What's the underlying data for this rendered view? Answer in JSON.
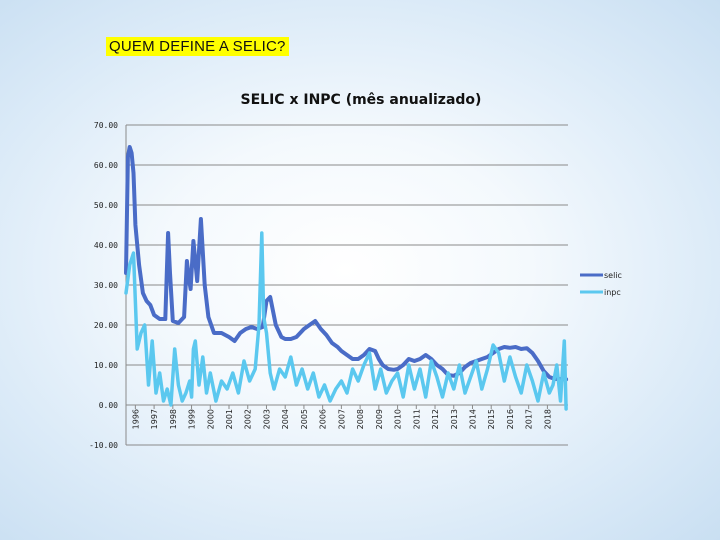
{
  "slide": {
    "title": "QUEM DEFINE A SELIC?"
  },
  "chart_data": {
    "type": "line",
    "title": "SELIC x INPC (mês anualizado)",
    "xlabel": "",
    "ylabel": "",
    "ylim": [
      -10,
      70
    ],
    "yticks": [
      -10,
      0,
      10,
      20,
      30,
      40,
      50,
      60,
      70
    ],
    "ytick_labels": [
      "-10.00",
      "0.00",
      "10.00",
      "20.00",
      "30.00",
      "40.00",
      "50.00",
      "60.00",
      "70.00"
    ],
    "xlim": [
      1995.5,
      2019.1
    ],
    "xticks": [
      1996,
      1997,
      1998,
      1999,
      2000,
      2001,
      2002,
      2003,
      2004,
      2005,
      2006,
      2007,
      2008,
      2009,
      2010,
      2011,
      2012,
      2013,
      2014,
      2015,
      2016,
      2017,
      2018
    ],
    "grid": true,
    "legend": "right",
    "colors": {
      "selic": "#4a6cc7",
      "inpc": "#5bc8ef"
    },
    "series": [
      {
        "name": "selic",
        "x": [
          1995.5,
          1995.6,
          1995.7,
          1995.8,
          1995.9,
          1996.0,
          1996.2,
          1996.4,
          1996.6,
          1996.8,
          1997.0,
          1997.3,
          1997.6,
          1997.75,
          1997.85,
          1998.0,
          1998.3,
          1998.6,
          1998.75,
          1998.85,
          1998.95,
          1999.1,
          1999.3,
          1999.5,
          1999.7,
          1999.9,
          2000.2,
          2000.6,
          2001.0,
          2001.3,
          2001.6,
          2001.9,
          2002.2,
          2002.5,
          2002.8,
          2003.0,
          2003.2,
          2003.5,
          2003.8,
          2004.0,
          2004.3,
          2004.6,
          2005.0,
          2005.3,
          2005.6,
          2005.9,
          2006.2,
          2006.5,
          2006.8,
          2007.0,
          2007.3,
          2007.6,
          2007.9,
          2008.2,
          2008.5,
          2008.8,
          2009.0,
          2009.2,
          2009.5,
          2009.8,
          2010.0,
          2010.3,
          2010.6,
          2010.9,
          2011.2,
          2011.5,
          2011.8,
          2012.1,
          2012.4,
          2012.7,
          2013.0,
          2013.3,
          2013.6,
          2013.9,
          2014.2,
          2014.5,
          2014.8,
          2015.1,
          2015.4,
          2015.7,
          2016.0,
          2016.3,
          2016.6,
          2016.9,
          2017.2,
          2017.5,
          2017.8,
          2018.1,
          2018.4,
          2018.7,
          2019.0
        ],
        "values": [
          33,
          62,
          64.5,
          63,
          58,
          45,
          35,
          28,
          26,
          25,
          22.5,
          21.5,
          21.5,
          43,
          33,
          21,
          20.5,
          22,
          36,
          32,
          29,
          41,
          31,
          46.5,
          30,
          22,
          18,
          18,
          17,
          16,
          18,
          19,
          19.5,
          19,
          19.5,
          26,
          27,
          20,
          17,
          16.5,
          16.5,
          17,
          19,
          20,
          21,
          19,
          17.5,
          15.5,
          14.5,
          13.5,
          12.5,
          11.5,
          11.5,
          12.5,
          14,
          13.5,
          11.5,
          10,
          9,
          8.8,
          9,
          10,
          11.5,
          11,
          11.5,
          12.5,
          11.5,
          10,
          9,
          7.5,
          7.3,
          8,
          9.5,
          10.5,
          11,
          11.5,
          12,
          13,
          14,
          14.5,
          14.3,
          14.5,
          14,
          14.2,
          13,
          11,
          8.5,
          7,
          6.5,
          6.5,
          6.4
        ]
      },
      {
        "name": "inpc",
        "x": [
          1995.5,
          1995.7,
          1995.9,
          1996.1,
          1996.3,
          1996.5,
          1996.7,
          1996.9,
          1997.1,
          1997.3,
          1997.5,
          1997.7,
          1997.9,
          1998.1,
          1998.3,
          1998.5,
          1998.7,
          1998.9,
          1999.0,
          1999.1,
          1999.2,
          1999.4,
          1999.6,
          1999.8,
          2000.0,
          2000.3,
          2000.6,
          2000.9,
          2001.2,
          2001.5,
          2001.8,
          2002.1,
          2002.4,
          2002.6,
          2002.75,
          2002.85,
          2003.0,
          2003.2,
          2003.4,
          2003.7,
          2004.0,
          2004.3,
          2004.6,
          2004.9,
          2005.2,
          2005.5,
          2005.8,
          2006.1,
          2006.4,
          2006.7,
          2007.0,
          2007.3,
          2007.6,
          2007.9,
          2008.2,
          2008.5,
          2008.8,
          2009.1,
          2009.4,
          2009.7,
          2010.0,
          2010.3,
          2010.6,
          2010.9,
          2011.2,
          2011.5,
          2011.8,
          2012.1,
          2012.4,
          2012.7,
          2013.0,
          2013.3,
          2013.6,
          2013.9,
          2014.2,
          2014.5,
          2014.8,
          2015.1,
          2015.4,
          2015.7,
          2016.0,
          2016.3,
          2016.6,
          2016.9,
          2017.2,
          2017.5,
          2017.8,
          2018.1,
          2018.3,
          2018.5,
          2018.7,
          2018.9,
          2019.0
        ],
        "values": [
          28,
          35,
          38,
          14,
          18,
          20,
          5,
          16,
          3,
          8,
          1,
          4,
          0,
          14,
          5,
          1,
          3,
          6,
          2,
          14,
          16,
          5,
          12,
          3,
          8,
          1,
          6,
          4,
          8,
          3,
          11,
          6,
          9,
          20,
          43,
          22,
          18,
          8,
          4,
          9,
          7,
          12,
          5,
          9,
          4,
          8,
          2,
          5,
          1,
          4,
          6,
          3,
          9,
          6,
          10,
          13,
          4,
          9,
          3,
          6,
          8,
          2,
          10,
          4,
          9,
          2,
          11,
          7,
          2,
          8,
          4,
          10,
          3,
          7,
          11,
          4,
          9,
          15,
          13,
          6,
          12,
          7,
          3,
          10,
          6,
          1,
          8,
          3,
          5,
          10,
          1,
          16,
          -1
        ]
      }
    ]
  }
}
